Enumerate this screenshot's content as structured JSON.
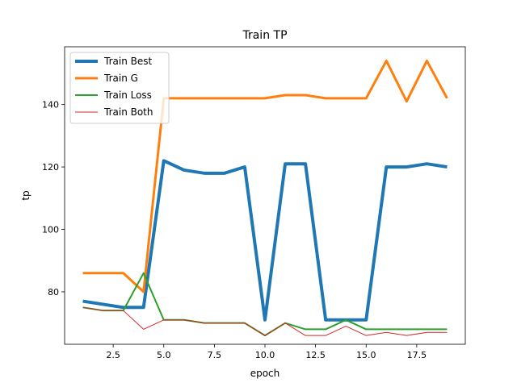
{
  "chart_data": {
    "type": "line",
    "title": "Train TP",
    "xlabel": "epoch",
    "ylabel": "tp",
    "xlim": [
      0.1,
      19.9
    ],
    "ylim": [
      63.2,
      158.5
    ],
    "xticks": [
      2.5,
      5.0,
      7.5,
      10.0,
      12.5,
      15.0,
      17.5
    ],
    "xtick_labels": [
      "2.5",
      "5.0",
      "7.5",
      "10.0",
      "12.5",
      "15.0",
      "17.5"
    ],
    "yticks": [
      80,
      100,
      120,
      140
    ],
    "ytick_labels": [
      "80",
      "100",
      "120",
      "140"
    ],
    "grid": false,
    "legend_position": "upper-left",
    "x": [
      1,
      2,
      3,
      4,
      5,
      6,
      7,
      8,
      9,
      10,
      11,
      12,
      13,
      14,
      15,
      16,
      17,
      18,
      19
    ],
    "series": [
      {
        "name": "Train Best",
        "color": "#1f77b4",
        "linewidth": 4,
        "values": [
          77,
          76,
          75,
          75,
          122,
          119,
          118,
          118,
          120,
          71,
          121,
          121,
          71,
          71,
          71,
          120,
          120,
          121,
          120
        ]
      },
      {
        "name": "Train G",
        "color": "#ff7f0e",
        "linewidth": 3,
        "values": [
          86,
          86,
          86,
          80,
          142,
          142,
          142,
          142,
          142,
          142,
          143,
          143,
          142,
          142,
          142,
          154,
          141,
          154,
          142
        ]
      },
      {
        "name": "Train Loss",
        "color": "#2ca02c",
        "linewidth": 2,
        "values": [
          75,
          74,
          74,
          86,
          71,
          71,
          70,
          70,
          70,
          66,
          70,
          68,
          68,
          71,
          68,
          68,
          68,
          68,
          68
        ]
      },
      {
        "name": "Train Both",
        "color": "#d62728",
        "linewidth": 1,
        "values": [
          75,
          74,
          74,
          68,
          71,
          71,
          70,
          70,
          70,
          66,
          70,
          66,
          66,
          69,
          66,
          67,
          66,
          67,
          67
        ]
      }
    ]
  }
}
